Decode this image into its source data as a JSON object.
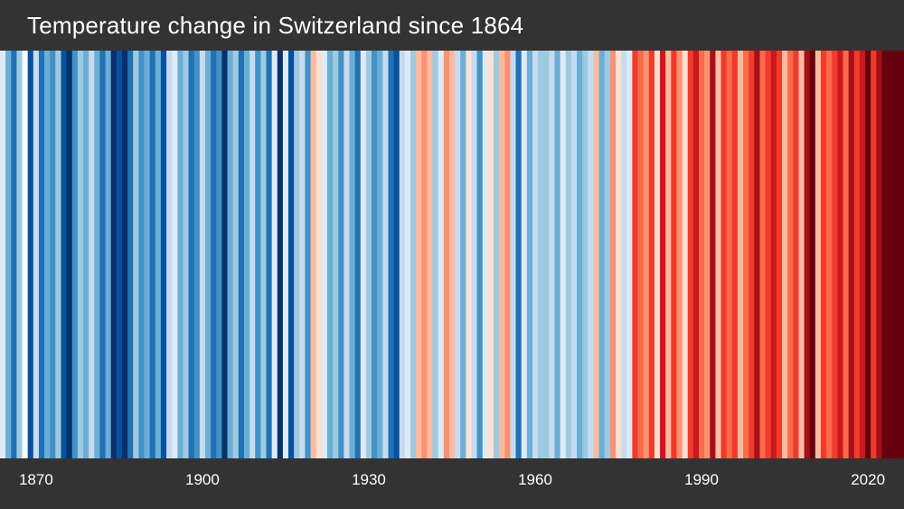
{
  "title": "Temperature change in Switzerland since 1864",
  "chart_data": {
    "type": "heatmap",
    "title": "Temperature change in Switzerland since 1864",
    "xlabel": "",
    "ylabel": "",
    "x_range": [
      1864,
      2022
    ],
    "x_ticks": [
      1870,
      1900,
      1930,
      1960,
      1990,
      2020
    ],
    "grid": false,
    "legend": "none",
    "background": "#333333",
    "colors": [
      "#deebf7",
      "#6baed6",
      "#2171b5",
      "#9ecae1",
      "#f7fbff",
      "#08519c",
      "#c6dbef",
      "#2171b5",
      "#6baed6",
      "#4292c6",
      "#9ecae1",
      "#08519c",
      "#08306b",
      "#4292c6",
      "#9ecae1",
      "#6baed6",
      "#c6dbef",
      "#6baed6",
      "#2171b5",
      "#6baed6",
      "#08306b",
      "#08519c",
      "#08306b",
      "#2171b5",
      "#9ecae1",
      "#4292c6",
      "#6baed6",
      "#2171b5",
      "#6baed6",
      "#08519c",
      "#c6dbef",
      "#deebf7",
      "#6baed6",
      "#9ecae1",
      "#2171b5",
      "#4292c6",
      "#c6dbef",
      "#6baed6",
      "#2171b5",
      "#4292c6",
      "#08306b",
      "#6baed6",
      "#9ecae1",
      "#2171b5",
      "#6baed6",
      "#c6dbef",
      "#4292c6",
      "#9ecae1",
      "#2171b5",
      "#deebf7",
      "#08306b",
      "#deebf7",
      "#08519c",
      "#9ecae1",
      "#c6dbef",
      "#4292c6",
      "#fcbba1",
      "#fee0d2",
      "#deebf7",
      "#6baed6",
      "#9ecae1",
      "#4292c6",
      "#c6dbef",
      "#6baed6",
      "#2171b5",
      "#deebf7",
      "#9ecae1",
      "#4292c6",
      "#6baed6",
      "#c6dbef",
      "#2171b5",
      "#08519c",
      "#c6dbef",
      "#deebf7",
      "#9ecae1",
      "#fcbba1",
      "#fc9272",
      "#fcbba1",
      "#9ecae1",
      "#deebf7",
      "#fc9272",
      "#fcbba1",
      "#c6dbef",
      "#6baed6",
      "#fee0d2",
      "#c6dbef",
      "#4292c6",
      "#deebf7",
      "#fee0d2",
      "#9ecae1",
      "#fcbba1",
      "#fc9272",
      "#c6dbef",
      "#2171b5",
      "#deebf7",
      "#6baed6",
      "#c6dbef",
      "#9ecae1",
      "#9ecae1",
      "#c6dbef",
      "#6baed6",
      "#deebf7",
      "#9ecae1",
      "#c6dbef",
      "#6baed6",
      "#9ecae1",
      "#c6dbef",
      "#fcbba1",
      "#6baed6",
      "#9ecae1",
      "#fc9272",
      "#fee0d2",
      "#c6dbef",
      "#deebf7",
      "#ef3b2c",
      "#fb6a4a",
      "#fc9272",
      "#ef3b2c",
      "#fee0d2",
      "#cb181d",
      "#fcbba1",
      "#ef3b2c",
      "#fc9272",
      "#fee0d2",
      "#ef3b2c",
      "#cb181d",
      "#fb6a4a",
      "#fc9272",
      "#a50f15",
      "#fcbba1",
      "#ef3b2c",
      "#fb6a4a",
      "#ef3b2c",
      "#fcbba1",
      "#fb6a4a",
      "#ef3b2c",
      "#a50f15",
      "#fb6a4a",
      "#ef3b2c",
      "#cb181d",
      "#ef3b2c",
      "#fcbba1",
      "#fb6a4a",
      "#ef3b2c",
      "#fcbba1",
      "#a50f15",
      "#67000d",
      "#fcbba1",
      "#ef3b2c",
      "#fb6a4a",
      "#ef3b2c",
      "#cb181d",
      "#fb6a4a",
      "#a50f15",
      "#ef3b2c",
      "#cb181d",
      "#67000d",
      "#ef3b2c",
      "#a50f15",
      "#67000d",
      "#67000d",
      "#67000d",
      "#67000d"
    ]
  }
}
